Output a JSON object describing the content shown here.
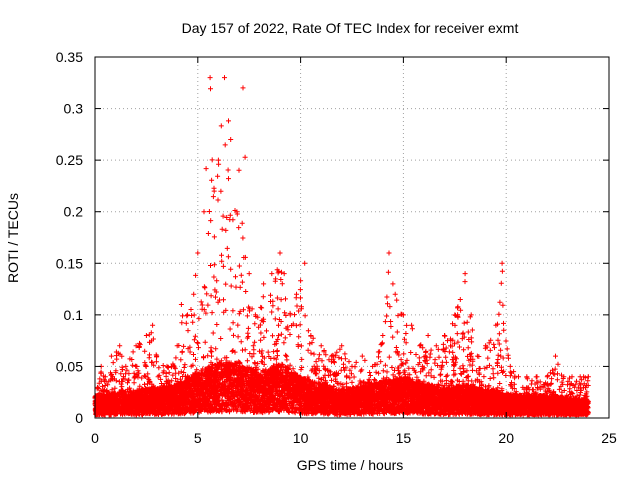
{
  "chart_data": {
    "type": "scatter",
    "title": "Day 157 of 2022, Rate Of TEC Index for receiver exmt",
    "xlabel": "GPS time / hours",
    "ylabel": "ROTI / TECUs",
    "xlim": [
      0,
      25
    ],
    "ylim": [
      0,
      0.35
    ],
    "xticks": [
      "0",
      "5",
      "10",
      "15",
      "20",
      "25"
    ],
    "yticks": [
      "0",
      "0.05",
      "0.1",
      "0.15",
      "0.2",
      "0.25",
      "0.3",
      "0.35"
    ],
    "grid": true,
    "marker": "+",
    "color": "#ff0000",
    "envelope": {
      "x": [
        0,
        0.3,
        0.5,
        0.8,
        1.2,
        1.5,
        2.0,
        2.5,
        2.8,
        3.0,
        3.5,
        4.0,
        4.2,
        4.5,
        4.8,
        5.0,
        5.3,
        5.6,
        5.8,
        6.0,
        6.3,
        6.6,
        6.9,
        7.2,
        7.5,
        7.8,
        8.2,
        8.6,
        9.0,
        9.2,
        9.5,
        9.8,
        10.2,
        10.5,
        11.0,
        11.5,
        12.0,
        12.5,
        13.0,
        13.5,
        14.0,
        14.3,
        14.6,
        15.0,
        15.4,
        15.8,
        16.2,
        16.6,
        17.0,
        17.5,
        18.0,
        18.3,
        18.6,
        19.0,
        19.5,
        19.8,
        20.2,
        20.6,
        21.0,
        21.5,
        22.0,
        22.4,
        22.8,
        23.2,
        23.6,
        24.0
      ],
      "y": [
        0.02,
        0.05,
        0.04,
        0.06,
        0.07,
        0.05,
        0.07,
        0.08,
        0.09,
        0.06,
        0.05,
        0.07,
        0.11,
        0.1,
        0.12,
        0.16,
        0.2,
        0.33,
        0.22,
        0.25,
        0.33,
        0.27,
        0.2,
        0.32,
        0.14,
        0.1,
        0.13,
        0.14,
        0.16,
        0.14,
        0.1,
        0.12,
        0.15,
        0.08,
        0.07,
        0.06,
        0.07,
        0.05,
        0.06,
        0.05,
        0.08,
        0.16,
        0.12,
        0.1,
        0.09,
        0.07,
        0.08,
        0.07,
        0.08,
        0.1,
        0.14,
        0.1,
        0.06,
        0.07,
        0.09,
        0.15,
        0.05,
        0.04,
        0.04,
        0.04,
        0.04,
        0.06,
        0.04,
        0.04,
        0.04,
        0.04
      ]
    },
    "baseline": {
      "x": [
        0,
        2,
        4,
        5,
        6,
        7,
        8,
        9,
        10,
        12,
        14,
        15,
        17,
        18,
        20,
        22,
        24
      ],
      "y": [
        0.012,
        0.015,
        0.018,
        0.025,
        0.03,
        0.03,
        0.025,
        0.03,
        0.022,
        0.015,
        0.02,
        0.022,
        0.016,
        0.018,
        0.013,
        0.012,
        0.01
      ]
    },
    "points_per_hour": 450,
    "seed": 157
  }
}
